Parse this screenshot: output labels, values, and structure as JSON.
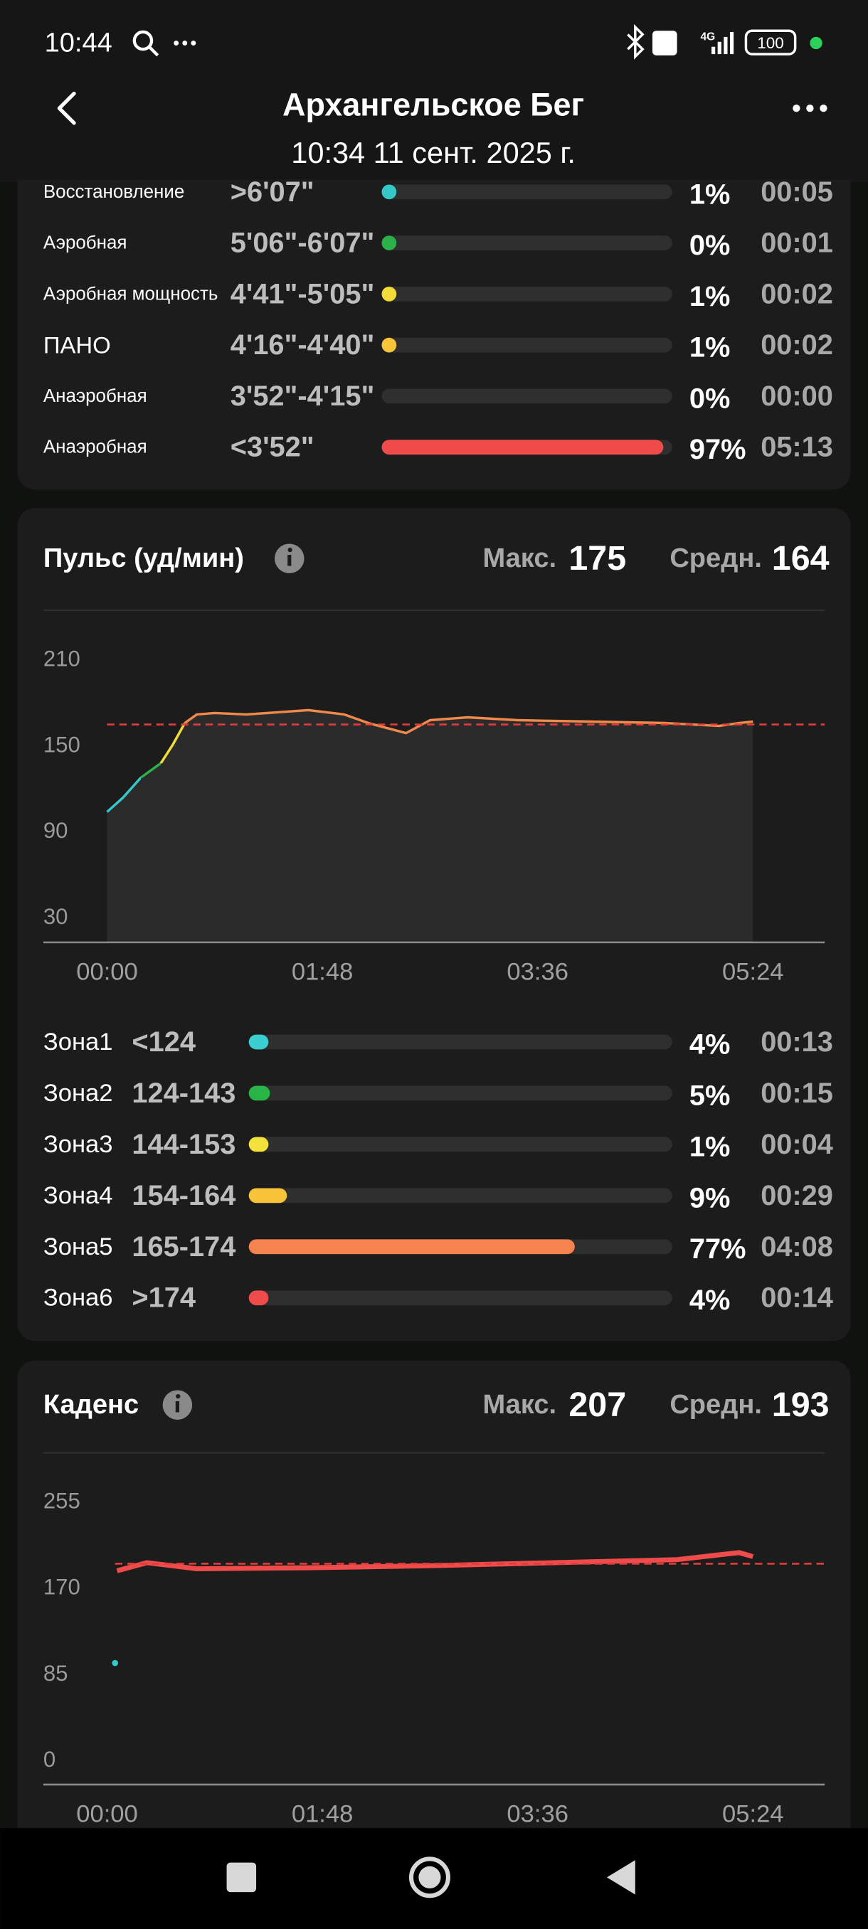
{
  "status_bar": {
    "time": "10:44",
    "network": "4G",
    "battery": "100"
  },
  "header": {
    "title": "Архангельское Бег",
    "subtitle": "10:34 11 сент. 2025 г."
  },
  "pace_zones": {
    "rows": [
      {
        "label": "Восстановление",
        "range": ">6'07\"",
        "percent": 1,
        "percent_label": "1%",
        "time": "00:05",
        "color": "#36c8c8"
      },
      {
        "label": "Аэробная",
        "range": "5'06\"-6'07\"",
        "percent": 0,
        "percent_label": "0%",
        "time": "00:01",
        "color": "#2bb04a"
      },
      {
        "label": "Аэробная мощность",
        "range": "4'41\"-5'05\"",
        "percent": 1,
        "percent_label": "1%",
        "time": "00:02",
        "color": "#f2dc3a"
      },
      {
        "label": "ПАНО",
        "range": "4'16\"-4'40\"",
        "percent": 1,
        "percent_label": "1%",
        "time": "00:02",
        "color": "#f8c43a"
      },
      {
        "label": "Анаэробная",
        "range": "3'52\"-4'15\"",
        "percent": 0,
        "percent_label": "0%",
        "time": "00:00",
        "color": null
      },
      {
        "label": "Анаэробная",
        "range": "<3'52\"",
        "percent": 97,
        "percent_label": "97%",
        "time": "05:13",
        "color": "#ef4b4b"
      }
    ]
  },
  "heart_rate": {
    "title": "Пульс (уд/мин)",
    "max_label": "Макс.",
    "max": 175,
    "avg_label": "Средн.",
    "avg": 164,
    "chart": {
      "type": "line",
      "fill": true,
      "avg_line_color": "#e03c3c",
      "x": [
        0,
        8,
        17,
        27,
        33,
        39,
        45,
        54,
        70,
        101,
        119,
        131,
        150,
        162,
        181,
        206,
        243,
        280,
        307,
        317,
        324
      ],
      "series": [
        {
          "color": "#36c8c8",
          "values": [
            103,
            113,
            127,
            null,
            null,
            null,
            null,
            null,
            null,
            null,
            null,
            null,
            null,
            null,
            null,
            null,
            null,
            null,
            null,
            null,
            null
          ]
        },
        {
          "color": "#2bb04a",
          "values": [
            null,
            null,
            127,
            137,
            null,
            null,
            null,
            null,
            null,
            null,
            null,
            null,
            null,
            null,
            null,
            null,
            null,
            null,
            null,
            null,
            null
          ]
        },
        {
          "color": "#f2dc3a",
          "values": [
            null,
            null,
            null,
            137,
            150,
            165,
            null,
            null,
            null,
            null,
            null,
            null,
            null,
            null,
            null,
            null,
            null,
            null,
            null,
            null,
            null
          ]
        },
        {
          "color": "#f0894a",
          "values": [
            null,
            null,
            null,
            null,
            null,
            165,
            171,
            172,
            171,
            174,
            171,
            165,
            158,
            167,
            169,
            167,
            166,
            165,
            163,
            165,
            166
          ]
        }
      ],
      "xlim": [
        -32,
        360
      ],
      "ylim": [
        12,
        230
      ],
      "xticks": [
        {
          "value": 0,
          "label": "00:00"
        },
        {
          "value": 108,
          "label": "01:48"
        },
        {
          "value": 216,
          "label": "03:36"
        },
        {
          "value": 324,
          "label": "05:24"
        }
      ],
      "yticks": [
        210,
        150,
        90,
        30
      ]
    },
    "zones": [
      {
        "label": "Зона1",
        "range": "<124",
        "percent": 4,
        "percent_label": "4%",
        "time": "00:13",
        "color": "#3ccfcf"
      },
      {
        "label": "Зона2",
        "range": "124-143",
        "percent": 5,
        "percent_label": "5%",
        "time": "00:15",
        "color": "#28b446"
      },
      {
        "label": "Зона3",
        "range": "144-153",
        "percent": 1,
        "percent_label": "1%",
        "time": "00:04",
        "color": "#f4e23c"
      },
      {
        "label": "Зона4",
        "range": "154-164",
        "percent": 9,
        "percent_label": "9%",
        "time": "00:29",
        "color": "#f8c43a"
      },
      {
        "label": "Зона5",
        "range": "165-174",
        "percent": 77,
        "percent_label": "77%",
        "time": "04:08",
        "color": "#f58350"
      },
      {
        "label": "Зона6",
        "range": ">174",
        "percent": 4,
        "percent_label": "4%",
        "time": "00:14",
        "color": "#ef4b4b"
      }
    ]
  },
  "cadence": {
    "title": "Каденс",
    "max_label": "Макс.",
    "max": 207,
    "avg_label": "Средн.",
    "avg": 193,
    "chart": {
      "type": "line",
      "fill": false,
      "avg_line_color": "#e03c3c",
      "x": [
        4,
        5,
        20,
        45,
        101,
        162,
        224,
        286,
        317,
        324
      ],
      "series": [
        {
          "color": "#36c8c8",
          "values": [
            95,
            null,
            null,
            null,
            null,
            null,
            null,
            null,
            null,
            null
          ]
        },
        {
          "color": "#ef4b4b",
          "values": [
            null,
            186,
            194,
            188,
            189,
            191,
            194,
            197,
            204,
            200
          ]
        }
      ],
      "xlim": [
        -32,
        360
      ],
      "ylim": [
        -25,
        285
      ],
      "xticks": [
        {
          "value": 0,
          "label": "00:00"
        },
        {
          "value": 108,
          "label": "01:48"
        },
        {
          "value": 216,
          "label": "03:36"
        },
        {
          "value": 324,
          "label": "05:24"
        }
      ],
      "yticks": [
        255,
        170,
        85,
        0
      ]
    }
  }
}
